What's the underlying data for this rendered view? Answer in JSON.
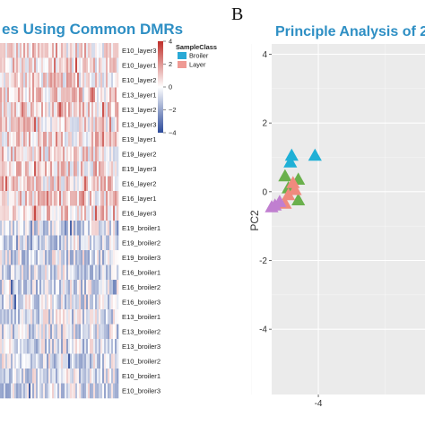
{
  "panel_b_label": "B",
  "chart_data": [
    {
      "type": "heatmap",
      "title": "es Using Common DMRs",
      "rows": [
        "E10_layer3",
        "E10_layer1",
        "E10_layer2",
        "E13_layer1",
        "E13_layer2",
        "E13_layer3",
        "E19_layer1",
        "E19_layer2",
        "E19_layer3",
        "E16_layer2",
        "E16_layer1",
        "E16_layer3",
        "E19_broiler1",
        "E19_broiler2",
        "E19_broiler3",
        "E16_broiler1",
        "E16_broiler2",
        "E16_broiler3",
        "E13_broiler1",
        "E13_broiler2",
        "E13_broiler3",
        "E10_broiler2",
        "E10_broiler1",
        "E10_broiler3"
      ],
      "groups": [
        "Layer",
        "Layer",
        "Layer",
        "Layer",
        "Layer",
        "Layer",
        "Layer",
        "Layer",
        "Layer",
        "Layer",
        "Layer",
        "Layer",
        "Broiler",
        "Broiler",
        "Broiler",
        "Broiler",
        "Broiler",
        "Broiler",
        "Broiler",
        "Broiler",
        "Broiler",
        "Broiler",
        "Broiler",
        "Broiler"
      ],
      "color_scale": {
        "ticks": [
          "4",
          "2",
          "0",
          "−2",
          "−4"
        ],
        "tick_values": [
          4,
          2,
          0,
          -2,
          -4
        ],
        "high_color": "#c0302b",
        "mid_color": "#ffffff",
        "low_color": "#2c4a9a"
      },
      "legend": {
        "title": "SampleClass",
        "items": [
          {
            "label": "Broiler",
            "color": "#2aa9d6"
          },
          {
            "label": "Layer",
            "color": "#ef9a94"
          }
        ]
      }
    },
    {
      "type": "scatter",
      "title": "Principle Analysis of 2",
      "xlabel": "",
      "ylabel": "PC2",
      "xlim": [
        -4.7,
        -2.4
      ],
      "ylim": [
        -5.9,
        4.3
      ],
      "x_ticks": [
        -4
      ],
      "x_tick_labels": [
        "-4"
      ],
      "y_ticks": [
        4,
        2,
        0,
        -2,
        -4
      ],
      "y_tick_labels": [
        "4",
        "2",
        "0",
        "-2",
        "-4"
      ],
      "grid": true,
      "marker": "triangle",
      "series": [
        {
          "color": "#1fb0d6",
          "points": [
            [
              -4.4,
              1.05
            ],
            [
              -4.05,
              1.05
            ],
            [
              -4.42,
              0.85
            ]
          ]
        },
        {
          "color": "#6ab04c",
          "points": [
            [
              -4.5,
              0.45
            ],
            [
              -4.3,
              0.35
            ],
            [
              -4.45,
              0.1
            ],
            [
              -4.3,
              -0.25
            ]
          ]
        },
        {
          "color": "#f08a7e",
          "points": [
            [
              -4.38,
              0.25
            ],
            [
              -4.45,
              -0.1
            ],
            [
              -4.5,
              -0.35
            ],
            [
              -4.35,
              0.05
            ]
          ]
        },
        {
          "color": "#c07fd0",
          "points": [
            [
              -4.65,
              -0.4
            ],
            [
              -4.58,
              -0.3
            ],
            [
              -4.7,
              -0.45
            ]
          ]
        }
      ]
    }
  ]
}
